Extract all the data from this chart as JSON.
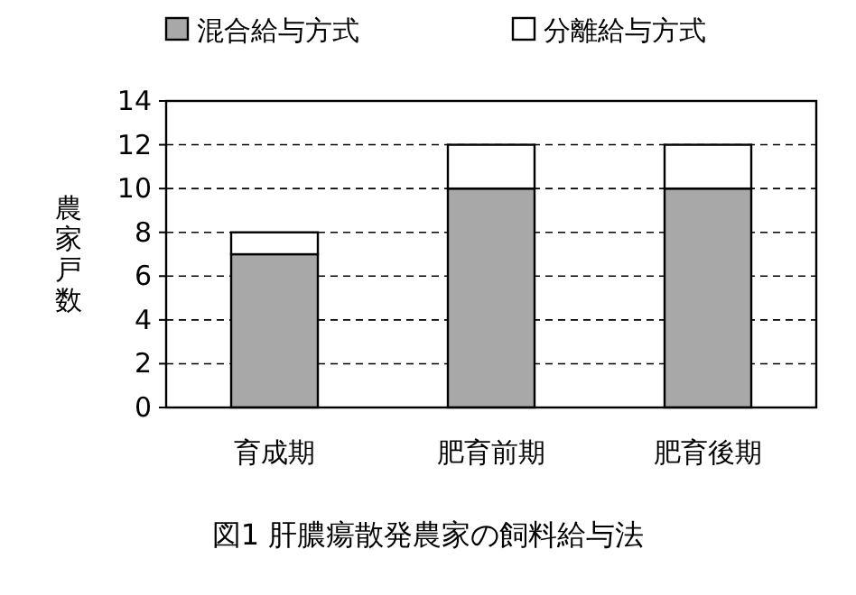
{
  "chart_data": {
    "type": "bar",
    "stacked": true,
    "title": "図1 肝膿瘍散発農家の飼料給与法",
    "ylabel": "農家戸数",
    "categories": [
      "育成期",
      "肥育前期",
      "肥育後期"
    ],
    "series": [
      {
        "name": "混合給与方式",
        "color": "#a8a8a8",
        "values": [
          7,
          10,
          10
        ]
      },
      {
        "name": "分離給与方式",
        "color": "#ffffff",
        "values": [
          1,
          2,
          2
        ]
      }
    ],
    "ylim": [
      0,
      14
    ],
    "yticks": [
      0,
      2,
      4,
      6,
      8,
      10,
      12,
      14
    ],
    "grid": "y",
    "legend": "top"
  }
}
